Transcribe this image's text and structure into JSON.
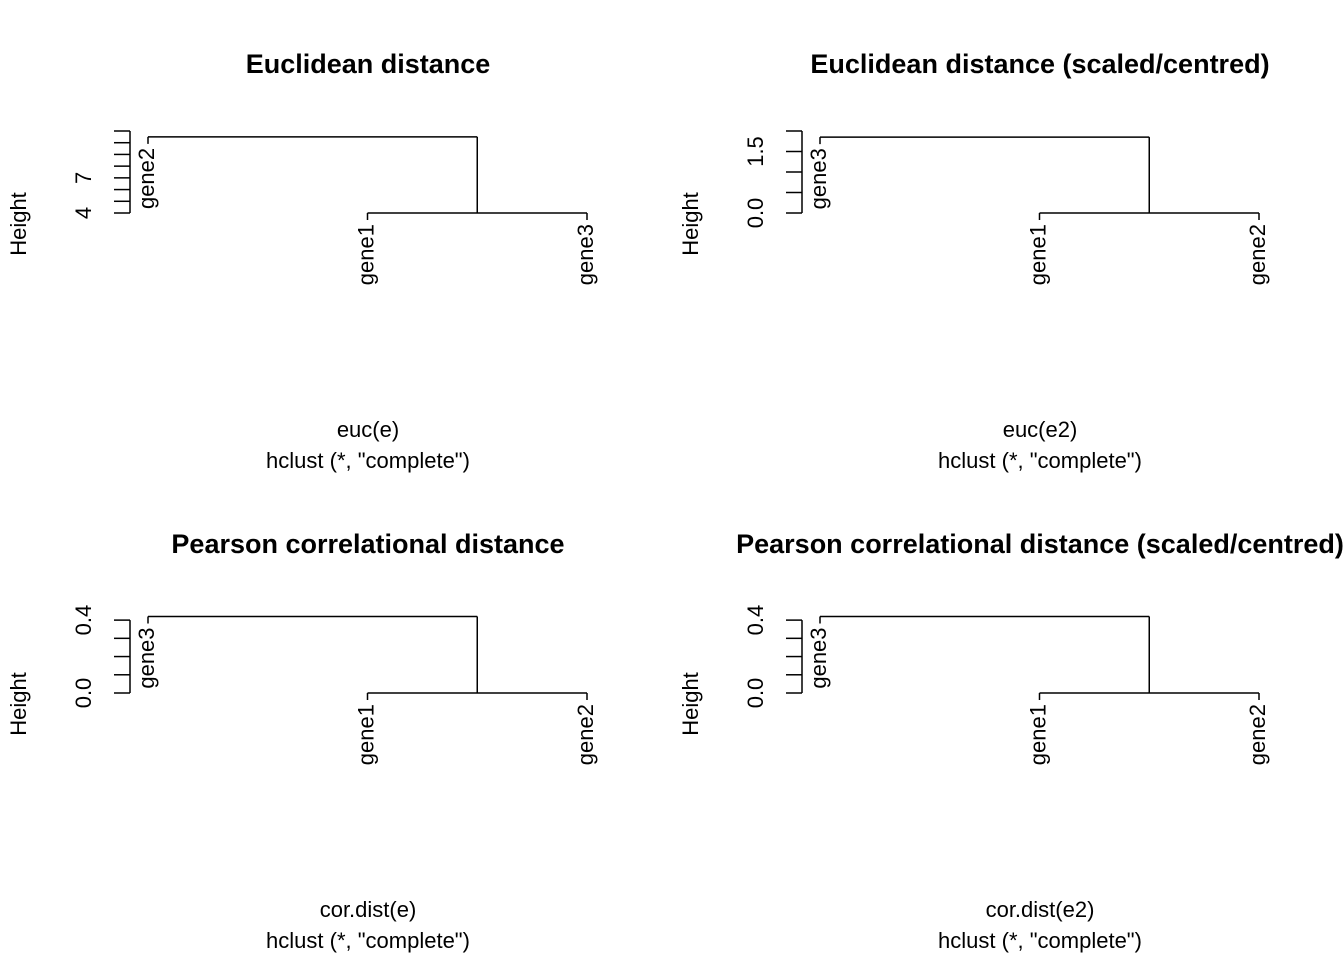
{
  "chart_data": [
    {
      "type": "dendrogram",
      "title": "Euclidean distance",
      "xlabel": "euc(e)",
      "subtitle": "hclust (*, \"complete\")",
      "ylabel": "Height",
      "tree": {
        "height": 10.5,
        "children": [
          "gene2",
          {
            "height": 4,
            "children": [
              "gene1",
              "gene3"
            ]
          }
        ]
      },
      "ylim": [
        4,
        11
      ],
      "yticks": [
        4,
        7
      ],
      "yminorticks": [
        5,
        6,
        8,
        9,
        10,
        11
      ]
    },
    {
      "type": "dendrogram",
      "title": "Euclidean distance (scaled/centred)",
      "xlabel": "euc(e2)",
      "subtitle": "hclust (*, \"complete\")",
      "ylabel": "Height",
      "tree": {
        "height": 1.85,
        "children": [
          "gene3",
          {
            "height": 0,
            "children": [
              "gene1",
              "gene2"
            ]
          }
        ]
      },
      "ylim": [
        0,
        2
      ],
      "yticks": [
        {
          "value": 0,
          "label": "0.0"
        },
        1.5
      ],
      "yminorticks": [
        0.5,
        1,
        2
      ]
    },
    {
      "type": "dendrogram",
      "title": "Pearson correlational distance",
      "xlabel": "cor.dist(e)",
      "subtitle": "hclust (*, \"complete\")",
      "ylabel": "Height",
      "tree": {
        "height": 0.42,
        "children": [
          "gene3",
          {
            "height": 0,
            "children": [
              "gene1",
              "gene2"
            ]
          }
        ]
      },
      "ylim": [
        0,
        0.45
      ],
      "yticks": [
        {
          "value": 0,
          "label": "0.0"
        },
        0.4
      ],
      "yminorticks": [
        0.1,
        0.2,
        0.3
      ]
    },
    {
      "type": "dendrogram",
      "title": "Pearson correlational distance (scaled/centred)",
      "xlabel": "cor.dist(e2)",
      "subtitle": "hclust (*, \"complete\")",
      "ylabel": "Height",
      "tree": {
        "height": 0.42,
        "children": [
          "gene3",
          {
            "height": 0,
            "children": [
              "gene1",
              "gene2"
            ]
          }
        ]
      },
      "ylim": [
        0,
        0.45
      ],
      "yticks": [
        {
          "value": 0,
          "label": "0.0"
        },
        0.4
      ],
      "yminorticks": [
        0.1,
        0.2,
        0.3
      ]
    }
  ]
}
